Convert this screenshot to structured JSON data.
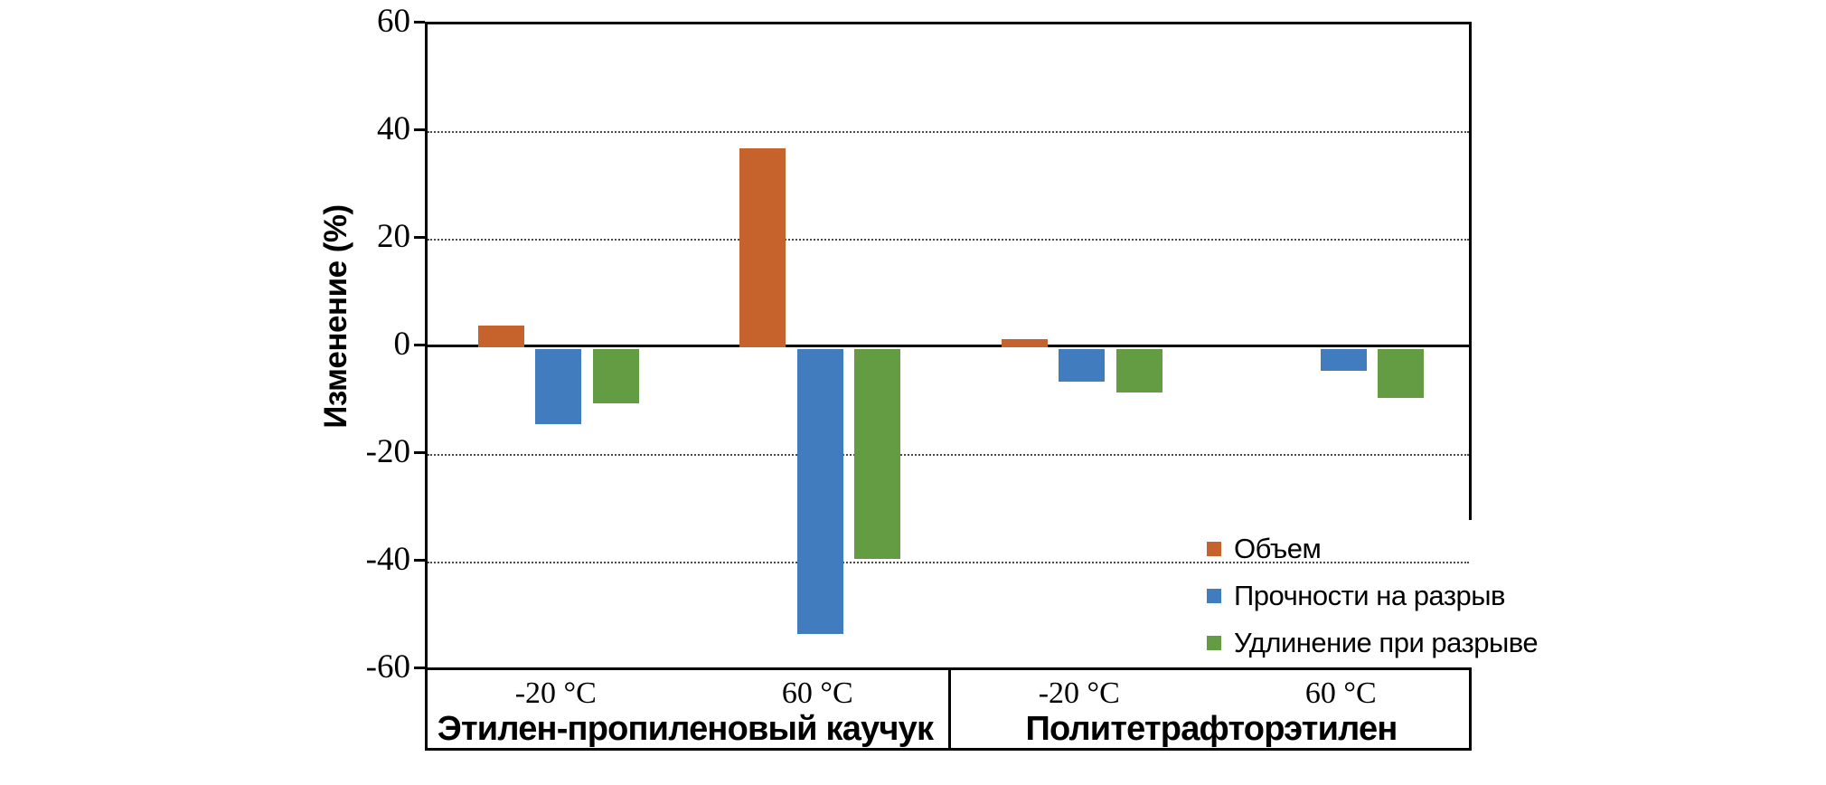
{
  "canvas": {
    "background": "#FFFFFF",
    "axis_color": "#000000",
    "gridline_color": "#4A4A4A"
  },
  "chart_data": {
    "type": "bar",
    "title": "",
    "ylabel": "Изменение (%)",
    "ylim": [
      -60,
      60
    ],
    "yticks": [
      60,
      40,
      20,
      0,
      -20,
      -40,
      -60
    ],
    "grid": "horizontal dotted lines at -40, -20, 20, 40; solid zero line",
    "legend_position": "inside lower right, white background",
    "groups": [
      {
        "label": "Этилен-пропиленовый каучук",
        "conditions": [
          "-20 °C",
          "60 °C"
        ]
      },
      {
        "label": "Политетрафторэтилен",
        "conditions": [
          "-20 °C",
          "60 °C"
        ]
      }
    ],
    "categories": [
      "Этилен-пропиленовый каучук / -20 °C",
      "Этилен-пропиленовый каучук / 60 °C",
      "Политетрафторэтилен / -20 °C",
      "Политетрафторэтилен / 60 °C"
    ],
    "series": [
      {
        "name": "Объем",
        "color": "#C6632C",
        "values": [
          4,
          37,
          1.5,
          0
        ]
      },
      {
        "name": "Прочности на разрыв",
        "color": "#417DBE",
        "values": [
          -14,
          -53,
          -6,
          -4
        ]
      },
      {
        "name": "Удлинение при разрыве",
        "color": "#649C44",
        "values": [
          -10,
          -39,
          -8,
          -9
        ]
      }
    ]
  }
}
